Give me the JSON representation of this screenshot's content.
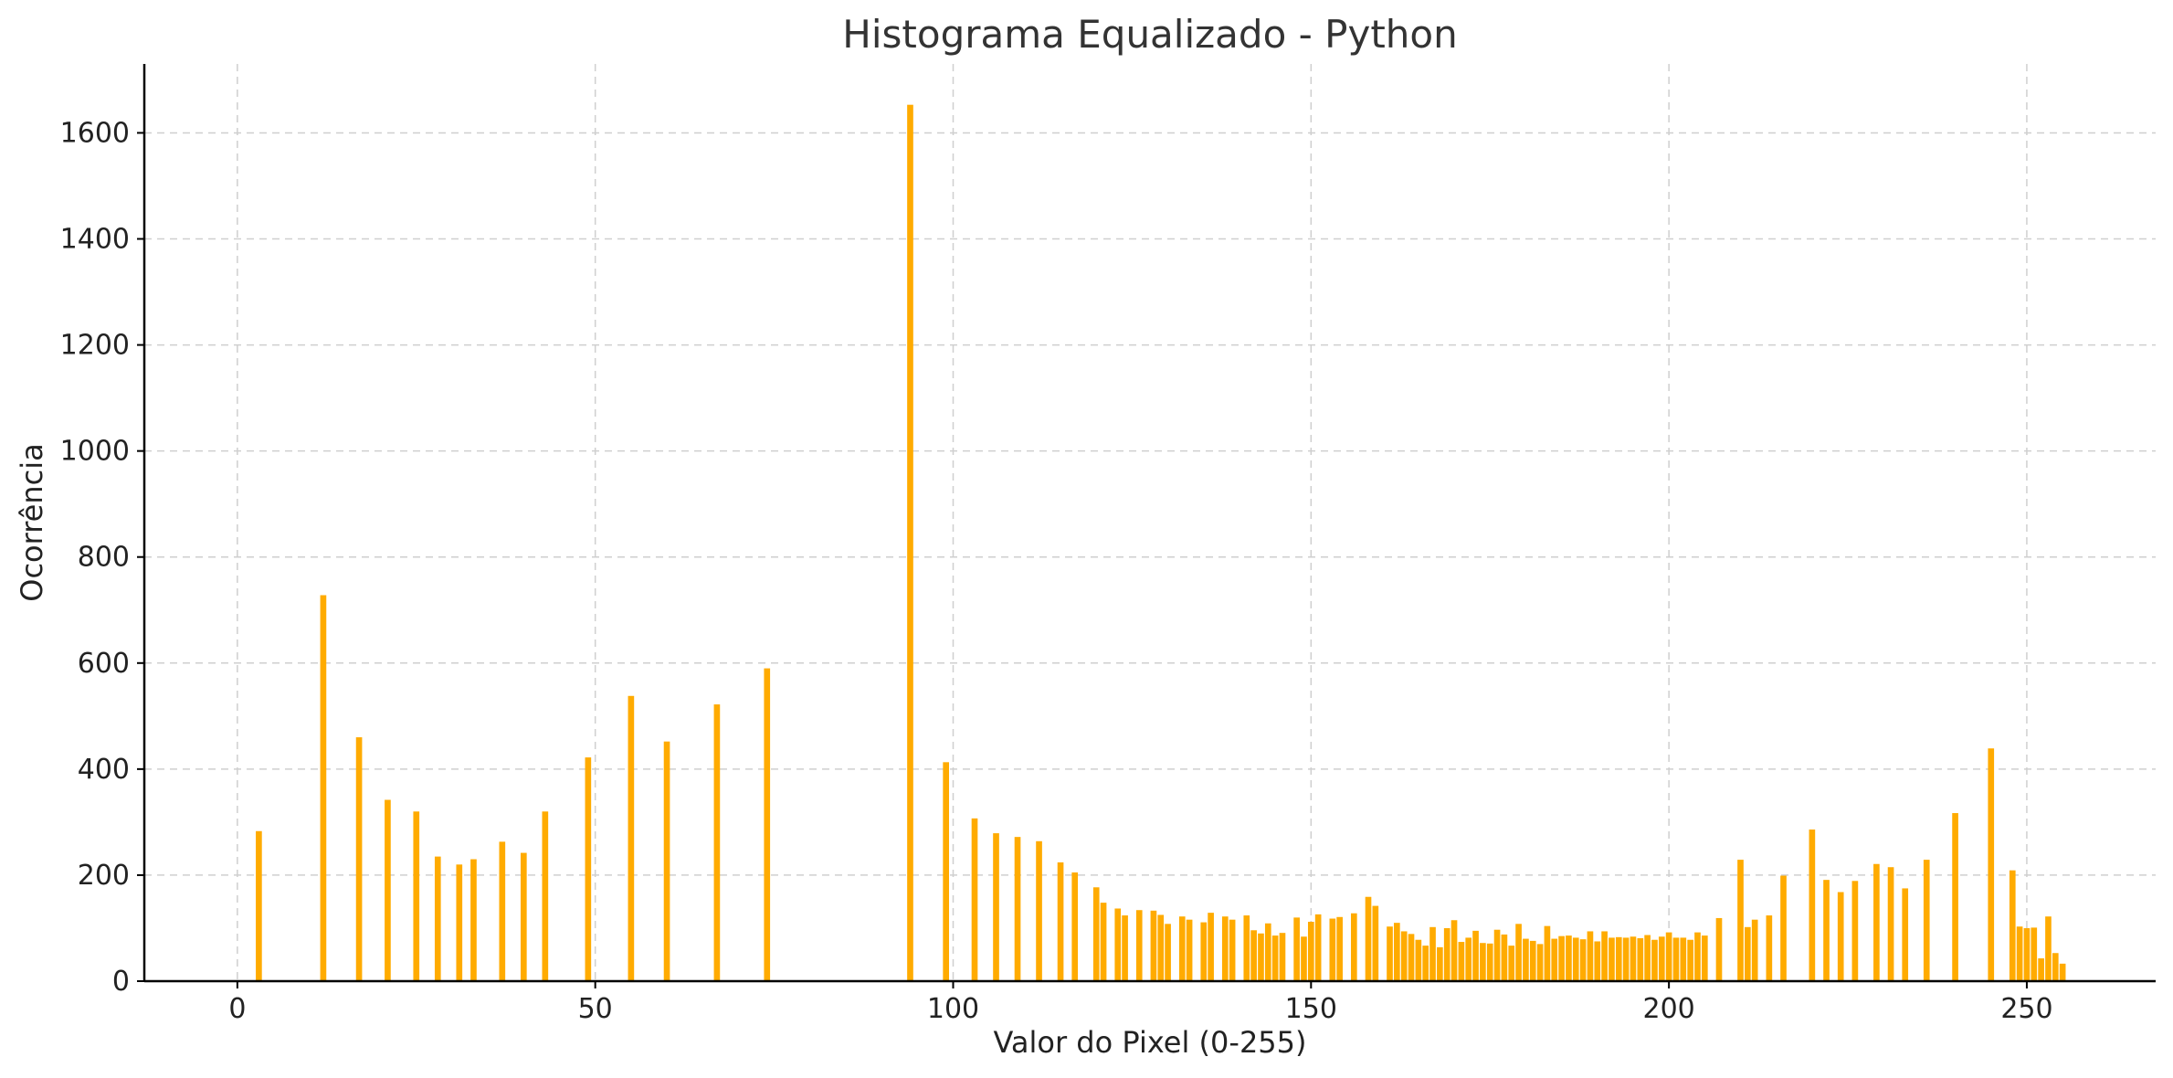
{
  "chart_data": {
    "type": "bar",
    "title": "Histograma Equalizado - Python",
    "xlabel": "Valor do Pixel (0-255)",
    "ylabel": "Ocorrência",
    "xlim": [
      -13,
      268
    ],
    "ylim": [
      0,
      1730
    ],
    "xticks": [
      0,
      50,
      100,
      150,
      200,
      250
    ],
    "yticks": [
      0,
      200,
      400,
      600,
      800,
      1000,
      1200,
      1400,
      1600
    ],
    "grid": true,
    "bar_color": "#ffab00",
    "x": [
      3,
      12,
      17,
      21,
      25,
      28,
      31,
      33,
      37,
      40,
      43,
      49,
      55,
      60,
      67,
      74,
      94,
      99,
      103,
      106,
      109,
      112,
      115,
      117,
      120,
      121,
      123,
      124,
      126,
      128,
      129,
      130,
      132,
      133,
      135,
      136,
      138,
      139,
      141,
      142,
      143,
      144,
      145,
      146,
      148,
      149,
      150,
      151,
      153,
      154,
      156,
      158,
      159,
      161,
      162,
      163,
      164,
      165,
      166,
      167,
      168,
      169,
      170,
      171,
      172,
      173,
      174,
      175,
      176,
      177,
      178,
      179,
      180,
      181,
      182,
      183,
      184,
      185,
      186,
      187,
      188,
      189,
      190,
      191,
      192,
      193,
      194,
      195,
      196,
      197,
      198,
      199,
      200,
      201,
      202,
      203,
      204,
      205,
      207,
      210,
      211,
      212,
      214,
      216,
      220,
      222,
      224,
      226,
      229,
      231,
      233,
      236,
      240,
      245,
      248,
      249,
      250,
      251,
      252,
      253,
      254,
      255
    ],
    "values": [
      283,
      728,
      460,
      342,
      320,
      235,
      220,
      230,
      263,
      242,
      320,
      422,
      538,
      452,
      522,
      590,
      1653,
      413,
      307,
      279,
      272,
      264,
      224,
      205,
      177,
      148,
      137,
      124,
      134,
      133,
      125,
      108,
      122,
      116,
      111,
      129,
      122,
      116,
      124,
      96,
      90,
      109,
      86,
      91,
      120,
      84,
      112,
      126,
      118,
      121,
      128,
      159,
      142,
      103,
      110,
      94,
      89,
      78,
      67,
      102,
      64,
      100,
      115,
      74,
      82,
      95,
      72,
      71,
      97,
      88,
      67,
      108,
      80,
      76,
      70,
      104,
      80,
      85,
      86,
      82,
      79,
      94,
      75,
      94,
      82,
      83,
      82,
      84,
      81,
      87,
      78,
      84,
      92,
      82,
      82,
      78,
      92,
      86,
      119,
      229,
      102,
      116,
      124,
      199,
      286,
      191,
      168,
      189,
      221,
      215,
      175,
      229,
      317,
      439,
      209,
      103,
      100,
      101,
      43,
      122,
      53,
      33
    ]
  }
}
